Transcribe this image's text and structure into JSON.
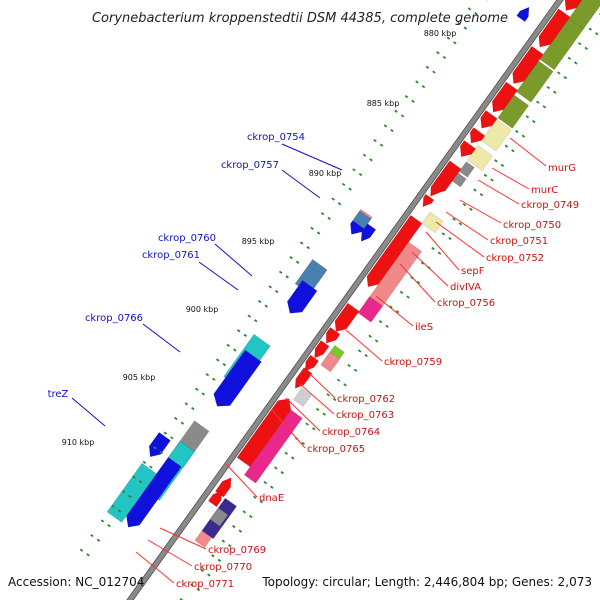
{
  "title": "Corynebacterium kroppenstedtii DSM 44385, complete genome",
  "footer": {
    "accession": "Accession: NC_012704",
    "summary": "Topology: circular; Length: 2,446,804 bp; Genes: 2,073"
  },
  "colors": {
    "red": "#ee1111",
    "salmon": "#f08a8a",
    "pink": "#e8288a",
    "khaki": "#eee9a8",
    "olive": "#7a9a2a",
    "gray": "#8a8a8a",
    "lightgray": "#cfcfcf",
    "blue": "#1010dd",
    "cyan": "#22c4c4",
    "steelblue": "#4a80b0",
    "navy": "#3a2a90",
    "green": "#78c828",
    "backbone": "#8a8a8a",
    "tick": "#2a8a2a",
    "blueLabel": "#1010cc",
    "redLabel": "#cc1010"
  },
  "kbp_ticks": [
    "880 kbp",
    "885 kbp",
    "890 kbp",
    "895 kbp",
    "900 kbp",
    "905 kbp",
    "910 kbp"
  ],
  "labels_left": [
    "ckrop_0754",
    "ckrop_0757",
    "ckrop_0760",
    "ckrop_0761",
    "ckrop_0766",
    "treZ"
  ],
  "labels_right": [
    "murG",
    "murC",
    "ckrop_0749",
    "ckrop_0750",
    "ckrop_0751",
    "ckrop_0752",
    "sepF",
    "divIVA",
    "ckrop_0756",
    "ileS",
    "ckrop_0759",
    "ckrop_0762",
    "ckrop_0763",
    "ckrop_0764",
    "ckrop_0765",
    "dnaE",
    "ckrop_0769",
    "ckrop_0770",
    "ckrop_0771"
  ]
}
